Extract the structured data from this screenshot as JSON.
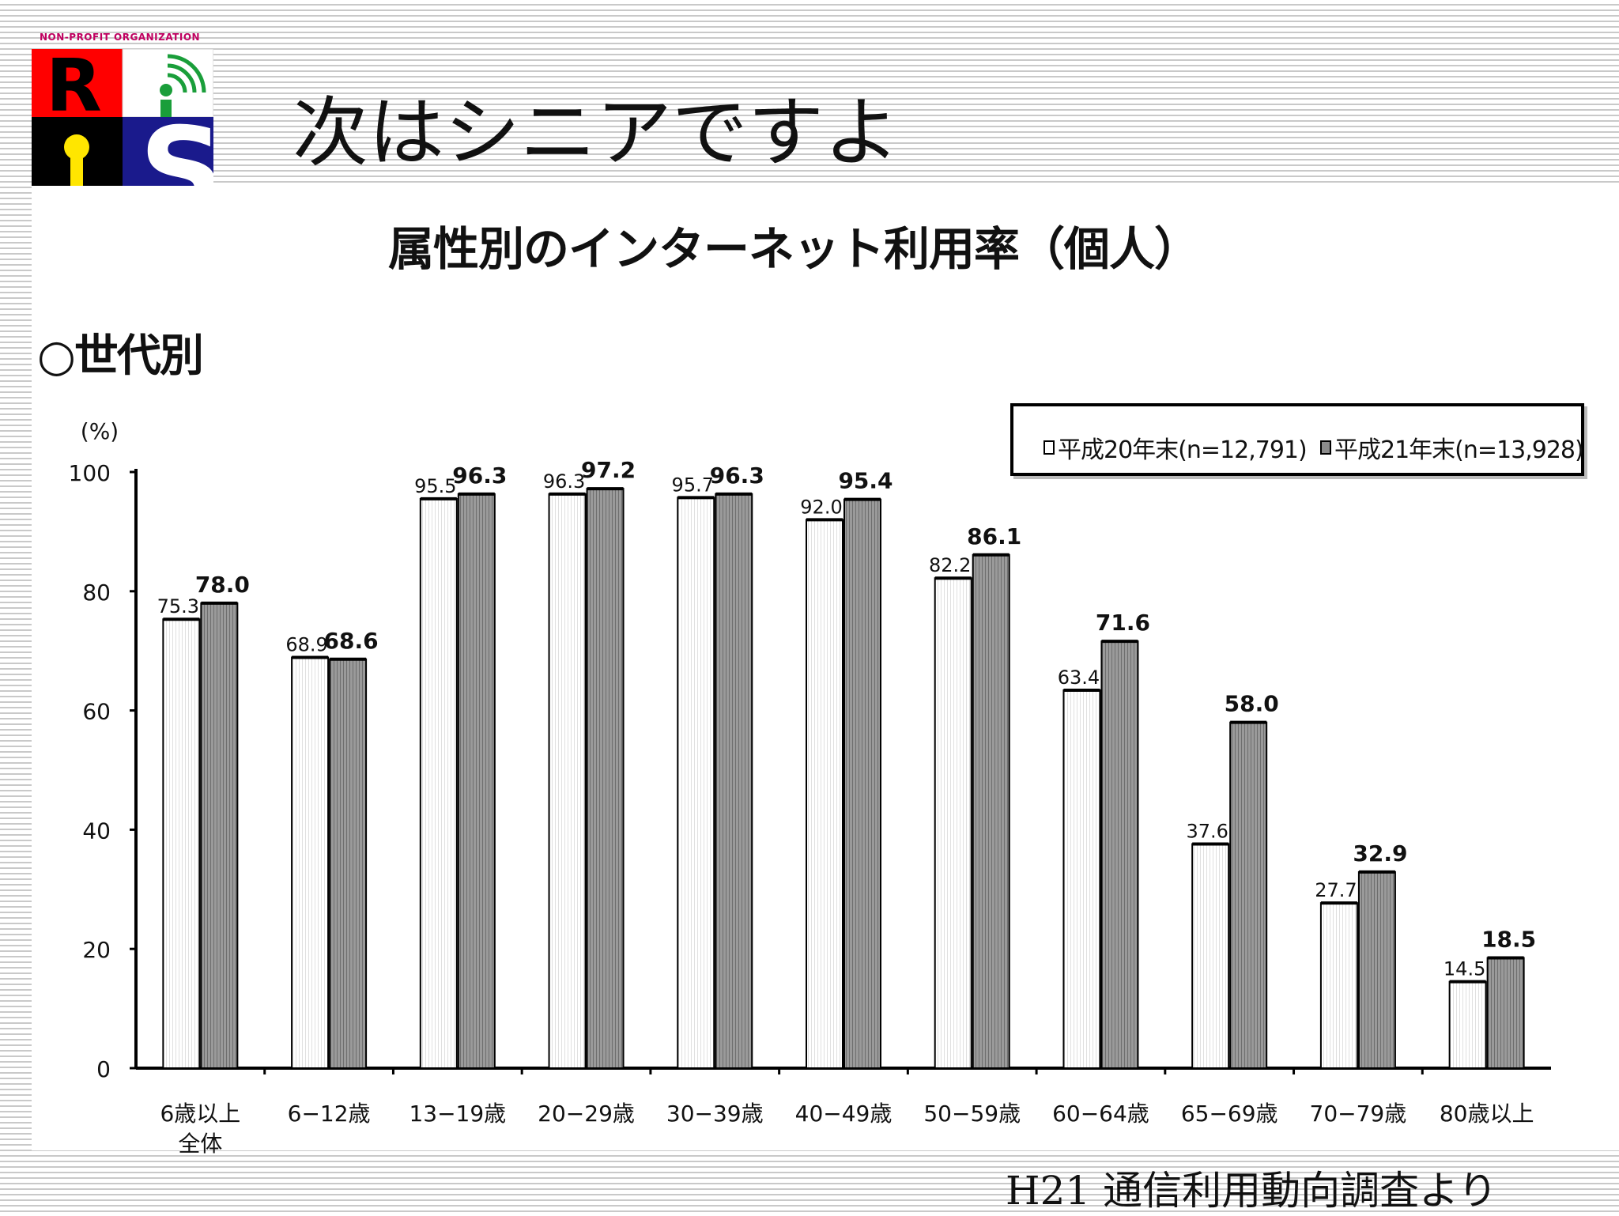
{
  "slide": {
    "title": "次はシニアですよ",
    "section_label": "○世代別",
    "source": "H21 通信利用動向調査より"
  },
  "logo": {
    "org_text": "NON-PROFIT ORGANIZATION",
    "letters": [
      "R",
      "i",
      "i",
      "S"
    ],
    "colors": {
      "red": "#ff0000",
      "green": "#1a9e3a",
      "black": "#000000",
      "navy": "#1a1a8c",
      "yellow": "#ffe600",
      "pink": "#c00060"
    }
  },
  "chart_data": {
    "type": "bar",
    "title": "属性別のインターネット利用率（個人）",
    "ylabel": "(%)",
    "ylim": [
      0,
      100
    ],
    "yticks": [
      "0",
      "20",
      "40",
      "60",
      "80",
      "100"
    ],
    "categories": [
      "6歳以上全体",
      "6−12歳",
      "13−19歳",
      "20−29歳",
      "30−39歳",
      "40−49歳",
      "50−59歳",
      "60−64歳",
      "65−69歳",
      "70−79歳",
      "80歳以上"
    ],
    "category_lines": [
      [
        "6歳以上",
        "全体"
      ],
      [
        "6−12歳"
      ],
      [
        "13−19歳"
      ],
      [
        "20−29歳"
      ],
      [
        "30−39歳"
      ],
      [
        "40−49歳"
      ],
      [
        "50−59歳"
      ],
      [
        "60−64歳"
      ],
      [
        "65−69歳"
      ],
      [
        "70−79歳"
      ],
      [
        "80歳以上"
      ]
    ],
    "series": [
      {
        "name": "平成20年末(n=12,791)",
        "color": "#ffffff",
        "values": [
          75.3,
          68.9,
          95.5,
          96.3,
          95.7,
          92.0,
          82.2,
          63.4,
          37.6,
          27.7,
          14.5
        ],
        "labels": [
          "75.3",
          "68.9",
          "95.5",
          "96.3",
          "95.7",
          "92.0",
          "82.2",
          "63.4",
          "37.6",
          "27.7",
          "14.5"
        ]
      },
      {
        "name": "平成21年末(n=13,928)",
        "color": "#8c8c8c",
        "values": [
          78.0,
          68.6,
          96.3,
          97.2,
          96.3,
          95.4,
          86.1,
          71.6,
          58.0,
          32.9,
          18.5
        ],
        "labels": [
          "78.0",
          "68.6",
          "96.3",
          "97.2",
          "96.3",
          "95.4",
          "86.1",
          "71.6",
          "58.0",
          "32.9",
          "18.5"
        ]
      }
    ],
    "legend_position": "top-right",
    "grid": false
  }
}
